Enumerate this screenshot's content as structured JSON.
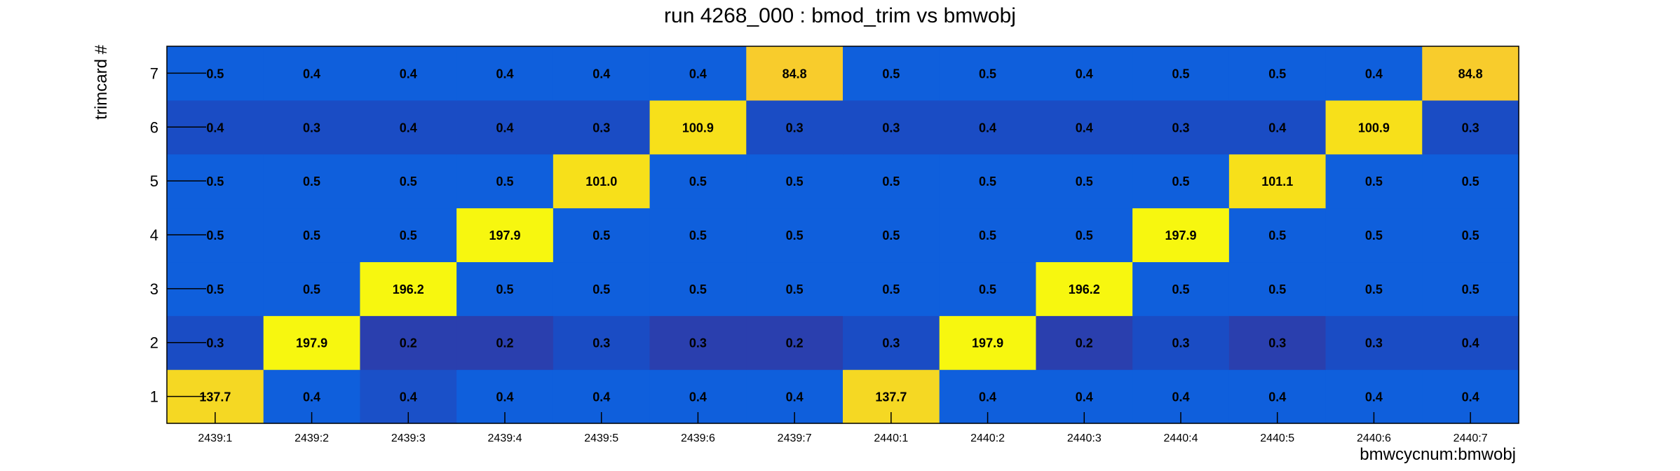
{
  "chart_data": {
    "type": "heatmap",
    "title": "run 4268_000 : bmod_trim vs bmwobj",
    "xlabel": "bmwcycnum:bmwobj",
    "ylabel": "trimcard #",
    "x_categories": [
      "2439:1",
      "2439:2",
      "2439:3",
      "2439:4",
      "2439:5",
      "2439:6",
      "2439:7",
      "2440:1",
      "2440:2",
      "2440:3",
      "2440:4",
      "2440:5",
      "2440:6",
      "2440:7"
    ],
    "y_categories": [
      "1",
      "2",
      "3",
      "4",
      "5",
      "6",
      "7"
    ],
    "values": [
      [
        "137.7",
        "0.4",
        "0.4",
        "0.4",
        "0.4",
        "0.4",
        "0.4",
        "137.7",
        "0.4",
        "0.4",
        "0.4",
        "0.4",
        "0.4",
        "0.4"
      ],
      [
        "0.3",
        "197.9",
        "0.2",
        "0.2",
        "0.3",
        "0.3",
        "0.2",
        "0.3",
        "197.9",
        "0.2",
        "0.3",
        "0.3",
        "0.3",
        "0.4"
      ],
      [
        "0.5",
        "0.5",
        "196.2",
        "0.5",
        "0.5",
        "0.5",
        "0.5",
        "0.5",
        "0.5",
        "196.2",
        "0.5",
        "0.5",
        "0.5",
        "0.5"
      ],
      [
        "0.5",
        "0.5",
        "0.5",
        "197.9",
        "0.5",
        "0.5",
        "0.5",
        "0.5",
        "0.5",
        "0.5",
        "197.9",
        "0.5",
        "0.5",
        "0.5"
      ],
      [
        "0.5",
        "0.5",
        "0.5",
        "0.5",
        "101.0",
        "0.5",
        "0.5",
        "0.5",
        "0.5",
        "0.5",
        "0.5",
        "101.1",
        "0.5",
        "0.5"
      ],
      [
        "0.4",
        "0.3",
        "0.4",
        "0.4",
        "0.3",
        "100.9",
        "0.3",
        "0.3",
        "0.4",
        "0.4",
        "0.3",
        "0.4",
        "100.9",
        "0.3"
      ],
      [
        "0.5",
        "0.4",
        "0.4",
        "0.4",
        "0.4",
        "0.4",
        "84.8",
        "0.5",
        "0.5",
        "0.4",
        "0.5",
        "0.5",
        "0.4",
        "84.8"
      ]
    ],
    "colors": [
      [
        "#f5d823",
        "#0f5fdc",
        "#1a50c8",
        "#0f5fdc",
        "#0f5fdc",
        "#0f5fdc",
        "#0f5fdc",
        "#f5d823",
        "#0f5fdc",
        "#0f5fdc",
        "#0f5fdc",
        "#0f5fdc",
        "#0f5fdc",
        "#0f5fdc"
      ],
      [
        "#1a4cc4",
        "#f7f70f",
        "#2a3fae",
        "#2a3fae",
        "#1a4cc4",
        "#2a3fae",
        "#2a3fae",
        "#1a4cc4",
        "#f7f70f",
        "#2a3fae",
        "#1a4cc4",
        "#2a3fae",
        "#1a4cc4",
        "#1a4cc4"
      ],
      [
        "#0f5fdc",
        "#0f5fdc",
        "#f7f70f",
        "#0f5fdc",
        "#0f5fdc",
        "#0f5fdc",
        "#0f5fdc",
        "#0f5fdc",
        "#0f5fdc",
        "#f7f70f",
        "#0f5fdc",
        "#0f5fdc",
        "#0f5fdc",
        "#0f5fdc"
      ],
      [
        "#0f5fdc",
        "#0f5fdc",
        "#0f5fdc",
        "#f7f70f",
        "#0f5fdc",
        "#0f5fdc",
        "#0f5fdc",
        "#0f5fdc",
        "#0f5fdc",
        "#0f5fdc",
        "#f7f70f",
        "#0f5fdc",
        "#0f5fdc",
        "#0f5fdc"
      ],
      [
        "#0f5fdc",
        "#0f5fdc",
        "#0f5fdc",
        "#0f5fdc",
        "#f7e01a",
        "#0f5fdc",
        "#0f5fdc",
        "#0f5fdc",
        "#0f5fdc",
        "#0f5fdc",
        "#0f5fdc",
        "#f7e01a",
        "#0f5fdc",
        "#0f5fdc"
      ],
      [
        "#1a4cc4",
        "#1a4cc4",
        "#1a4cc4",
        "#1a4cc4",
        "#1a4cc4",
        "#f7e01a",
        "#1a4cc4",
        "#1a4cc4",
        "#1a4cc4",
        "#1a4cc4",
        "#1a4cc4",
        "#1a4cc4",
        "#f7e01a",
        "#1a4cc4"
      ],
      [
        "#0f5fdc",
        "#0f5fdc",
        "#0f5fdc",
        "#0f5fdc",
        "#0f5fdc",
        "#0f5fdc",
        "#f8cc2c",
        "#0f5fdc",
        "#0f5fdc",
        "#0f5fdc",
        "#0f5fdc",
        "#0f5fdc",
        "#0f5fdc",
        "#f8cc2c"
      ]
    ]
  }
}
